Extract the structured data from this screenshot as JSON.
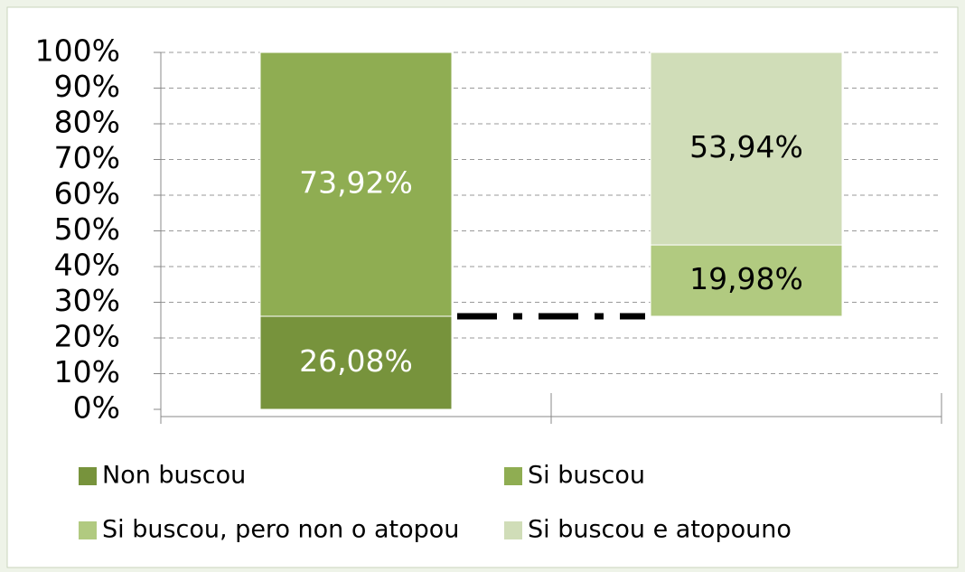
{
  "chart_data": {
    "type": "bar",
    "stacked": true,
    "categories": [
      null,
      null
    ],
    "series": [
      {
        "name": "Non buscou",
        "color": "#77933c",
        "label_color": "#ffffff",
        "values": [
          26.08,
          null
        ],
        "value_labels": [
          "26,08%",
          null
        ]
      },
      {
        "name": "Si buscou",
        "color": "#8fad52",
        "label_color": "#ffffff",
        "values": [
          73.92,
          null
        ],
        "value_labels": [
          "73,92%",
          null
        ]
      },
      {
        "name": "Si buscou, pero non o atopou",
        "color": "#b1ca80",
        "label_color": "#000000",
        "values": [
          null,
          19.98
        ],
        "value_labels": [
          null,
          "19,98%"
        ]
      },
      {
        "name": "Si buscou e atopouno",
        "color": "#d0ddb8",
        "label_color": "#000000",
        "values": [
          null,
          53.94
        ],
        "value_labels": [
          null,
          "53,94%"
        ]
      }
    ],
    "ylim": [
      0,
      100
    ],
    "yticks": [
      {
        "value": 0,
        "label": "0%"
      },
      {
        "value": 10,
        "label": "10%"
      },
      {
        "value": 20,
        "label": "20%"
      },
      {
        "value": 30,
        "label": "30%"
      },
      {
        "value": 40,
        "label": "40%"
      },
      {
        "value": 50,
        "label": "50%"
      },
      {
        "value": 60,
        "label": "60%"
      },
      {
        "value": 70,
        "label": "70%"
      },
      {
        "value": 80,
        "label": "80%"
      },
      {
        "value": 90,
        "label": "90%"
      },
      {
        "value": 100,
        "label": "100%"
      }
    ],
    "grid": true,
    "legend": "bottom"
  }
}
